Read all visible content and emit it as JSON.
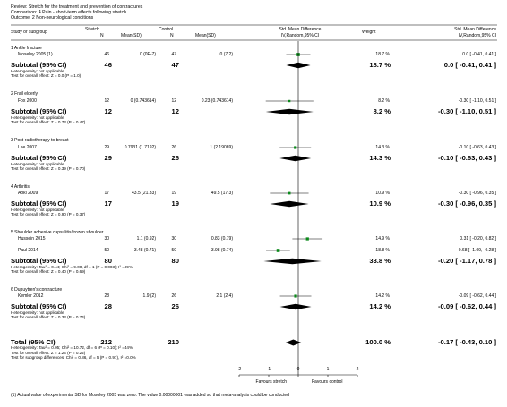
{
  "header": {
    "review": "Review:  Stretch for the treatment and prevention of contractures",
    "comparison": "Comparison:  4 Pain - short-term effects following stretch",
    "outcome": "Outcome:  2 Non-neurological conditions"
  },
  "columns": {
    "study": "Study or subgroup",
    "stretch": "Stretch",
    "control": "Control",
    "n1": "N",
    "mean1": "Mean(SD)",
    "n2": "N",
    "mean2": "Mean(SD)",
    "smd1": "Std. Mean Difference",
    "smd2": "IV,Random,95% CI",
    "weight": "Weight",
    "smd3": "Std. Mean Difference",
    "smd4": "IV,Random,95% CI"
  },
  "chart_data": {
    "type": "forest",
    "xlim": [
      -2,
      2
    ],
    "x_ticks": [
      -2,
      -1,
      0,
      1,
      2
    ],
    "x_tick_labels": [
      "-2",
      "-1",
      "0",
      "1",
      "2"
    ],
    "favours_left": "Favours stretch",
    "favours_right": "Favours control",
    "groups": [
      {
        "title": "1 Ankle fracture",
        "studies": [
          {
            "name": "Moseley 2005 (1)",
            "n1": "46",
            "m1": "0 (0E-7)",
            "n2": "47",
            "m2": "0 (7.2)",
            "weight": "18.7 %",
            "ci_text": "0.0 [ -0.41, 0.41 ]",
            "est": 0.0,
            "lo": -0.41,
            "hi": 0.41,
            "w": 18.7
          }
        ],
        "subtotal": {
          "label": "Subtotal (95% CI)",
          "n1": "46",
          "n2": "47",
          "weight": "18.7 %",
          "ci_text": "0.0 [ -0.41, 0.41 ]",
          "est": 0.0,
          "lo": -0.41,
          "hi": 0.41
        },
        "het": "Heterogeneity: not applicable",
        "test": "Test for overall effect: Z = 0.0 (P = 1.0)"
      },
      {
        "title": "2 Frail elderly",
        "studies": [
          {
            "name": "Fox 2000",
            "n1": "12",
            "m1": "0 (0.743614)",
            "n2": "12",
            "m2": "0.23 (0.743614)",
            "weight": "8.2 %",
            "ci_text": "-0.30 [ -1.10, 0.51 ]",
            "est": -0.3,
            "lo": -1.1,
            "hi": 0.51,
            "w": 8.2
          }
        ],
        "subtotal": {
          "label": "Subtotal (95% CI)",
          "n1": "12",
          "n2": "12",
          "weight": "8.2 %",
          "ci_text": "-0.30 [ -1.10, 0.51 ]",
          "est": -0.3,
          "lo": -1.1,
          "hi": 0.51
        },
        "het": "Heterogeneity: not applicable",
        "test": "Test for overall effect: Z = 0.73 (P = 0.47)"
      },
      {
        "title": "3 Post-radiotherapy to breast",
        "studies": [
          {
            "name": "Lee 2007",
            "n1": "29",
            "m1": "0.7931 (1.7192)",
            "n2": "26",
            "m2": "1 (2.19089)",
            "weight": "14.3 %",
            "ci_text": "-0.10 [ -0.63, 0.43 ]",
            "est": -0.1,
            "lo": -0.63,
            "hi": 0.43,
            "w": 14.3
          }
        ],
        "subtotal": {
          "label": "Subtotal (95% CI)",
          "n1": "29",
          "n2": "26",
          "weight": "14.3 %",
          "ci_text": "-0.10 [ -0.63, 0.43 ]",
          "est": -0.1,
          "lo": -0.63,
          "hi": 0.43
        },
        "het": "Heterogeneity: not applicable",
        "test": "Test for overall effect: Z = 0.39 (P = 0.70)"
      },
      {
        "title": "4 Arthritis",
        "studies": [
          {
            "name": "Aoki 2009",
            "n1": "17",
            "m1": "43.5 (21.33)",
            "n2": "19",
            "m2": "49.5 (17.3)",
            "weight": "10.9 %",
            "ci_text": "-0.30 [ -0.96, 0.35 ]",
            "est": -0.3,
            "lo": -0.96,
            "hi": 0.35,
            "w": 10.9
          }
        ],
        "subtotal": {
          "label": "Subtotal (95% CI)",
          "n1": "17",
          "n2": "19",
          "weight": "10.9 %",
          "ci_text": "-0.30 [ -0.96, 0.35 ]",
          "est": -0.3,
          "lo": -0.96,
          "hi": 0.35
        },
        "het": "Heterogeneity: not applicable",
        "test": "Test for overall effect: Z = 0.90 (P = 0.37)"
      },
      {
        "title": "5 Shoulder adhesive capsulitis/frozen shoulder",
        "studies": [
          {
            "name": "Hussein 2015",
            "n1": "30",
            "m1": "1.1 (0.92)",
            "n2": "30",
            "m2": "0.83 (0.79)",
            "weight": "14.9 %",
            "ci_text": "0.31 [ -0.20, 0.82 ]",
            "est": 0.31,
            "lo": -0.2,
            "hi": 0.82,
            "w": 14.9
          },
          {
            "name": "Paul 2014",
            "n1": "50",
            "m1": "3.48 (0.71)",
            "n2": "50",
            "m2": "3.98 (0.74)",
            "weight": "18.8 %",
            "ci_text": "-0.68 [ -1.09, -0.28 ]",
            "est": -0.68,
            "lo": -1.09,
            "hi": -0.28,
            "w": 18.8
          }
        ],
        "subtotal": {
          "label": "Subtotal (95% CI)",
          "n1": "80",
          "n2": "80",
          "weight": "33.8 %",
          "ci_text": "-0.20 [ -1.17, 0.78 ]",
          "est": -0.2,
          "lo": -1.17,
          "hi": 0.78
        },
        "het": "Heterogeneity: Tau² = 0.44; Chi² = 9.00, df = 1 (P = 0.003); I² =89%",
        "test": "Test for overall effect: Z = 0.40 (P = 0.69)"
      },
      {
        "title": "6 Dupuytren's contracture",
        "studies": [
          {
            "name": "Kemler 2012",
            "n1": "28",
            "m1": "1.9 (2)",
            "n2": "26",
            "m2": "2.1 (2.4)",
            "weight": "14.2 %",
            "ci_text": "-0.09 [ -0.62, 0.44 ]",
            "est": -0.09,
            "lo": -0.62,
            "hi": 0.44,
            "w": 14.2
          }
        ],
        "subtotal": {
          "label": "Subtotal (95% CI)",
          "n1": "28",
          "n2": "26",
          "weight": "14.2 %",
          "ci_text": "-0.09 [ -0.62, 0.44 ]",
          "est": -0.09,
          "lo": -0.62,
          "hi": 0.44
        },
        "het": "Heterogeneity: not applicable",
        "test": "Test for overall effect: Z = 0.33 (P = 0.74)"
      }
    ],
    "total": {
      "label": "Total (95% CI)",
      "n1": "212",
      "n2": "210",
      "weight": "100.0 %",
      "ci_text": "-0.17 [ -0.43, 0.10 ]",
      "est": -0.17,
      "lo": -0.43,
      "hi": 0.1,
      "het": "Heterogeneity: Tau² = 0.05; Chi² = 10.72, df = 6 (P = 0.10); I² =44%",
      "test": "Test for overall effect: Z = 1.24 (P = 0.22)",
      "subgroup": "Test for subgroup differences: Chi² = 0.86, df = 5 (P = 0.97), I² =0.0%"
    },
    "colors": {
      "square": "#0a8a1a",
      "line": "#000000",
      "diamond": "#000000"
    }
  },
  "footnote": "(1) Actual value of experimental SD for Moseley 2005 was zero. The value 0.00000001 was added so that meta-analysis could be conducted"
}
